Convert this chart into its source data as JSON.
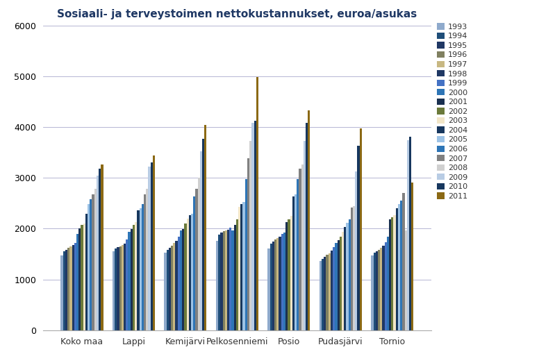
{
  "title": "Sosiaali- ja terveystoimen nettokustannukset, euroa/asukas",
  "categories": [
    "Koko maa",
    "Lappi",
    "Kemijärvi",
    "Pelkosenniemi",
    "Posio",
    "Pudasjärvi",
    "Tornio"
  ],
  "years": [
    "1993",
    "1994",
    "1995",
    "1996",
    "1997",
    "1998",
    "1999",
    "2000",
    "2001",
    "2002",
    "2003",
    "2004",
    "2005",
    "2006",
    "2007",
    "2008",
    "2009",
    "2010",
    "2011"
  ],
  "data": {
    "Koko maa": [
      1480,
      1550,
      1590,
      1620,
      1650,
      1680,
      1720,
      1900,
      2000,
      2080,
      2100,
      2300,
      2480,
      2580,
      2680,
      2780,
      3050,
      3180,
      3270
    ],
    "Lappi": [
      1560,
      1610,
      1640,
      1650,
      1680,
      1710,
      1790,
      1940,
      1990,
      2080,
      2130,
      2360,
      2400,
      2480,
      2680,
      2790,
      3220,
      3300,
      3440
    ],
    "Kemijärvi": [
      1530,
      1590,
      1630,
      1660,
      1720,
      1760,
      1840,
      1970,
      1990,
      2100,
      2200,
      2260,
      2300,
      2640,
      2780,
      3000,
      3520,
      3770,
      4040
    ],
    "Pelkosenniemi": [
      1760,
      1880,
      1930,
      1950,
      1960,
      1980,
      2020,
      1960,
      2080,
      2180,
      2430,
      2480,
      2520,
      2970,
      3380,
      3730,
      4080,
      4130,
      4990
    ],
    "Posio": [
      1610,
      1700,
      1750,
      1790,
      1810,
      1840,
      1900,
      1930,
      2130,
      2180,
      2250,
      2630,
      2680,
      2970,
      3180,
      3270,
      3730,
      4080,
      4330
    ],
    "Pudasjärvi": [
      1360,
      1410,
      1450,
      1490,
      1510,
      1570,
      1640,
      1720,
      1770,
      1840,
      1940,
      2040,
      2110,
      2190,
      2420,
      2450,
      3130,
      3630,
      3970
    ],
    "Tornio": [
      1480,
      1530,
      1560,
      1590,
      1630,
      1670,
      1740,
      1840,
      2190,
      2230,
      2260,
      2400,
      2490,
      2550,
      2710,
      1970,
      3740,
      3810,
      2910
    ]
  },
  "colors": [
    "#8faacc",
    "#1f4e79",
    "#203864",
    "#808060",
    "#c8b882",
    "#1f3864",
    "#4472c4",
    "#2e75b6",
    "#1a3050",
    "#6b7a3a",
    "#f2e6c8",
    "#17375e",
    "#9dc3e6",
    "#2e75b6",
    "#808080",
    "#d0d0d0",
    "#b8cce4",
    "#17375e",
    "#8b6914"
  ],
  "ylim": [
    0,
    6000
  ],
  "yticks": [
    0,
    1000,
    2000,
    3000,
    4000,
    5000,
    6000
  ],
  "background_color": "#ffffff",
  "title_color": "#1f3864",
  "title_fontsize": 11,
  "grid_color": "#aaaacc",
  "tick_fontsize": 9,
  "legend_fontsize": 8
}
